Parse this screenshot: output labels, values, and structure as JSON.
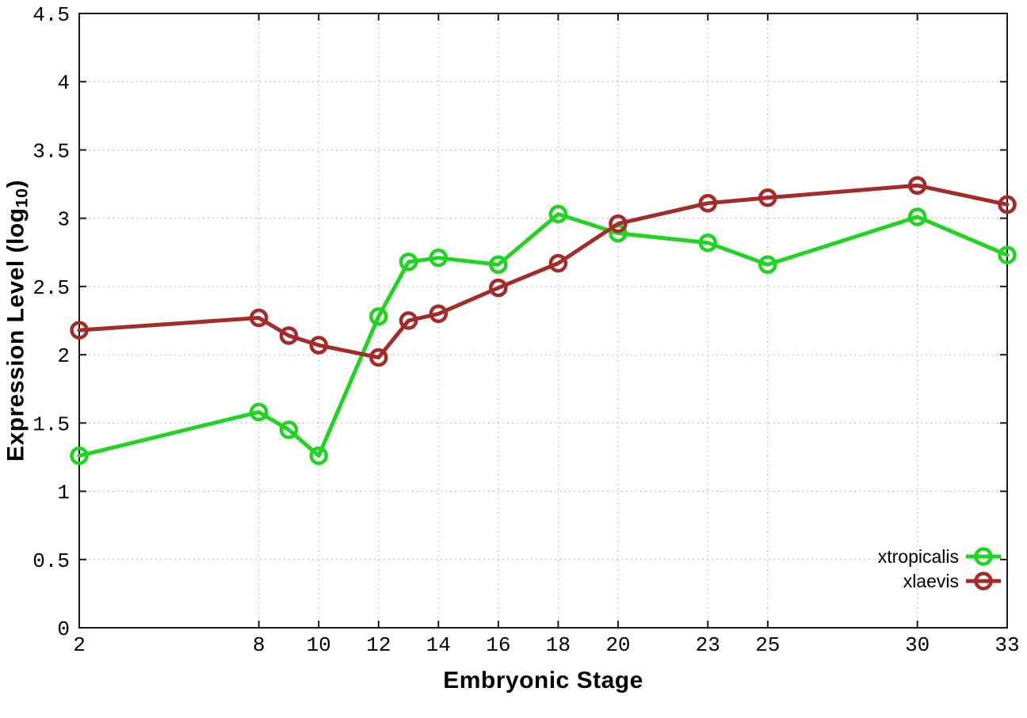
{
  "chart_data": {
    "type": "line",
    "xlabel": "Embryonic Stage",
    "ylabel": "Expression Level (log10)",
    "ylabel_parts": {
      "pre": "Expression Level (log",
      "sub": "10",
      "post": ")"
    },
    "xlim": [
      2,
      33
    ],
    "ylim": [
      0,
      4.5
    ],
    "grid": "dotted",
    "legend_position": "bottom-right-inside",
    "x_ticks": [
      2,
      8,
      10,
      12,
      14,
      16,
      18,
      20,
      23,
      25,
      30,
      33
    ],
    "y_ticks": [
      {
        "value": 0,
        "label": "0"
      },
      {
        "value": 0.5,
        "label": "0.5"
      },
      {
        "value": 1,
        "label": "1"
      },
      {
        "value": 1.5,
        "label": "1.5"
      },
      {
        "value": 2,
        "label": "2"
      },
      {
        "value": 2.5,
        "label": "2.5"
      },
      {
        "value": 3,
        "label": "3"
      },
      {
        "value": 3.5,
        "label": "3.5"
      },
      {
        "value": 4,
        "label": "4"
      },
      {
        "value": 4.5,
        "label": "4.5"
      }
    ],
    "series": [
      {
        "name": "xtropicalis",
        "color": "#21d421",
        "marker": "open-circle",
        "points": [
          [
            2,
            1.26
          ],
          [
            8,
            1.58
          ],
          [
            9,
            1.45
          ],
          [
            10,
            1.26
          ],
          [
            12,
            2.28
          ],
          [
            13,
            2.68
          ],
          [
            14,
            2.71
          ],
          [
            16,
            2.66
          ],
          [
            18,
            3.03
          ],
          [
            20,
            2.89
          ],
          [
            23,
            2.82
          ],
          [
            25,
            2.66
          ],
          [
            30,
            3.01
          ],
          [
            33,
            2.73
          ]
        ]
      },
      {
        "name": "xlaevis",
        "color": "#a52a2a",
        "marker": "open-circle",
        "points": [
          [
            2,
            2.18
          ],
          [
            8,
            2.27
          ],
          [
            9,
            2.14
          ],
          [
            10,
            2.07
          ],
          [
            12,
            1.98
          ],
          [
            13,
            2.25
          ],
          [
            14,
            2.3
          ],
          [
            16,
            2.49
          ],
          [
            18,
            2.67
          ],
          [
            20,
            2.96
          ],
          [
            23,
            3.11
          ],
          [
            25,
            3.15
          ],
          [
            30,
            3.24
          ],
          [
            33,
            3.1
          ]
        ]
      }
    ],
    "colors": {
      "border": "#1a1a1a",
      "grid": "#b8b8b8",
      "text": "#000000"
    }
  }
}
